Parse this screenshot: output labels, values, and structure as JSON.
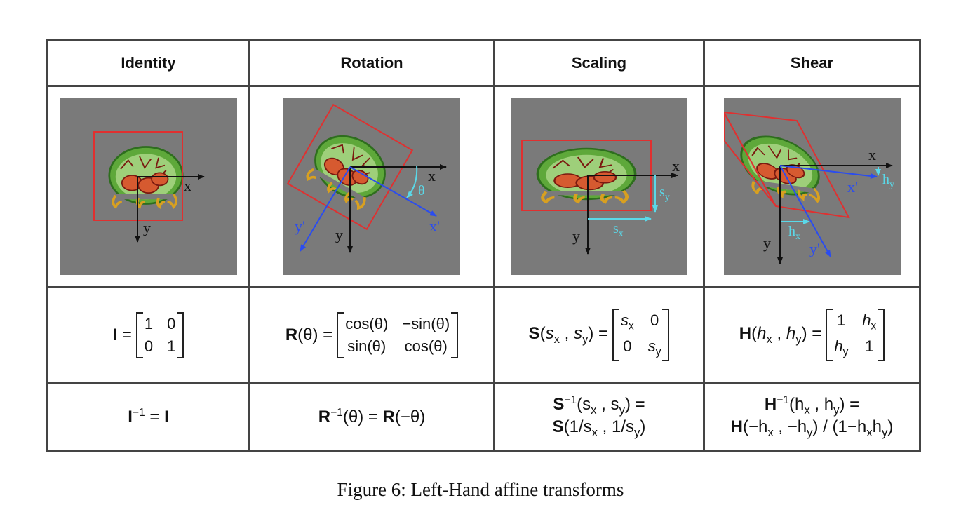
{
  "headers": {
    "identity": "Identity",
    "rotation": "Rotation",
    "scaling": "Scaling",
    "shear": "Shear"
  },
  "images": {
    "identity": {
      "x": "x",
      "y": "y"
    },
    "rotation": {
      "x": "x",
      "y": "y",
      "xp": "x'",
      "yp": "y'",
      "theta": "θ"
    },
    "scaling": {
      "x": "x",
      "y": "y",
      "sx": "s",
      "sx_sub": "x",
      "sy": "s",
      "sy_sub": "y"
    },
    "shear": {
      "x": "x",
      "y": "y",
      "xp": "x'",
      "yp": "y'",
      "hx": "h",
      "hx_sub": "x",
      "hy": "h",
      "hy_sub": "y"
    }
  },
  "formulas": {
    "identity": {
      "sym": "I",
      "eq": " =",
      "m": [
        "1",
        "0",
        "0",
        "1"
      ]
    },
    "rotation": {
      "sym": "R",
      "arg": "(θ) =",
      "m": [
        "cos(θ)",
        "−sin(θ)",
        "sin(θ)",
        "cos(θ)"
      ]
    },
    "scaling": {
      "sym": "S",
      "open": "(",
      "a": "s",
      "a_sub": "x",
      "sep": " , ",
      "b": "s",
      "b_sub": "y",
      "close": ") =",
      "m": [
        "s",
        "x",
        "0",
        "0",
        "s",
        "y"
      ]
    },
    "shear": {
      "sym": "H",
      "open": "(",
      "a": "h",
      "a_sub": "x",
      "sep": " , ",
      "b": "h",
      "b_sub": "y",
      "close": ") =",
      "m": [
        "1",
        "h",
        "x",
        "h",
        "y",
        "1"
      ]
    }
  },
  "inverses": {
    "identity": {
      "sym": "I",
      "sup": "−1",
      "rest": " = ",
      "sym2": "I"
    },
    "rotation": {
      "sym": "R",
      "sup": "−1",
      "rest": "(θ) = ",
      "sym2": "R",
      "rest2": "(−θ)"
    },
    "scaling": {
      "l1_sym": "S",
      "l1_sup": "−1",
      "l1_a": "(s",
      "l1_a_sub": "x",
      "l1_b": " , s",
      "l1_b_sub": "y",
      "l1_end": ") =",
      "l2_sym": "S",
      "l2_a": "(1/s",
      "l2_a_sub": "x",
      "l2_b": " , 1/s",
      "l2_b_sub": "y",
      "l2_end": ")"
    },
    "shear": {
      "l1_sym": "H",
      "l1_sup": "−1",
      "l1_a": "(h",
      "l1_a_sub": "x",
      "l1_b": " , h",
      "l1_b_sub": "y",
      "l1_end": ") =",
      "l2_sym": "H",
      "l2_a": "(−h",
      "l2_a_sub": "x",
      "l2_b": " , −h",
      "l2_b_sub": "y",
      "l2_c": ") / (1−h",
      "l2_c_sub": "x",
      "l2_d": "h",
      "l2_d_sub": "y",
      "l2_end": ")"
    }
  },
  "caption": "Figure 6: Left-Hand affine transforms",
  "colors": {
    "bg": "#7a7a7a",
    "frame": "#e03030",
    "axis": "#111111",
    "blue": "#2a4cf0",
    "cyan": "#5ad8e8"
  }
}
